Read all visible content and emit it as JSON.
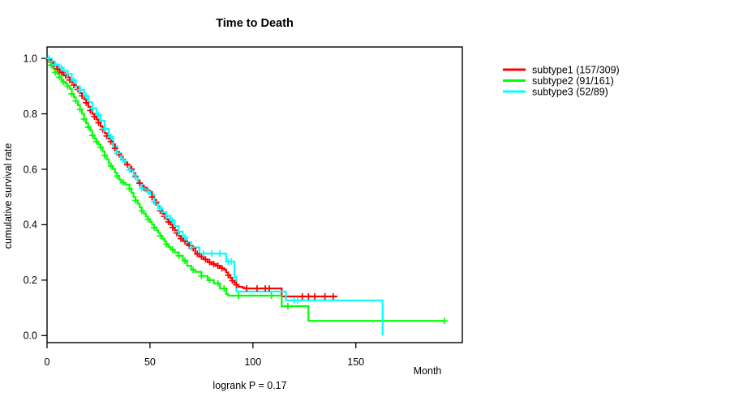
{
  "chart_data": {
    "type": "line",
    "variant": "kaplan-meier-step",
    "title": "Time to Death",
    "xlabel": "Month",
    "ylabel": "cumulative survival rate",
    "footnote": "logrank P = 0.17",
    "xlim": [
      0,
      201
    ],
    "ylim": [
      0,
      1
    ],
    "x_ticks": [
      0,
      50,
      100,
      150
    ],
    "y_ticks": [
      0.0,
      0.2,
      0.4,
      0.6,
      0.8,
      1.0
    ],
    "grid": false,
    "legend_position": "right",
    "series": [
      {
        "name": "subtype1 (157/309)",
        "color": "#ff0000",
        "steps": [
          [
            0,
            1.0
          ],
          [
            1,
            0.995
          ],
          [
            2,
            0.985
          ],
          [
            3,
            0.978
          ],
          [
            4,
            0.97
          ],
          [
            5,
            0.962
          ],
          [
            6,
            0.955
          ],
          [
            7,
            0.949
          ],
          [
            8,
            0.942
          ],
          [
            9,
            0.938
          ],
          [
            10,
            0.932
          ],
          [
            11,
            0.922
          ],
          [
            12,
            0.913
          ],
          [
            13,
            0.904
          ],
          [
            14,
            0.898
          ],
          [
            15,
            0.888
          ],
          [
            16,
            0.875
          ],
          [
            17,
            0.865
          ],
          [
            18,
            0.853
          ],
          [
            19,
            0.84
          ],
          [
            20,
            0.825
          ],
          [
            21,
            0.812
          ],
          [
            22,
            0.8
          ],
          [
            23,
            0.79
          ],
          [
            24,
            0.78
          ],
          [
            25,
            0.768
          ],
          [
            26,
            0.755
          ],
          [
            27,
            0.744
          ],
          [
            28,
            0.731
          ],
          [
            29,
            0.72
          ],
          [
            30,
            0.71
          ],
          [
            31,
            0.7
          ],
          [
            32,
            0.69
          ],
          [
            33,
            0.676
          ],
          [
            34,
            0.662
          ],
          [
            35,
            0.654
          ],
          [
            36,
            0.645
          ],
          [
            37,
            0.635
          ],
          [
            38,
            0.624
          ],
          [
            39,
            0.617
          ],
          [
            40,
            0.61
          ],
          [
            41,
            0.6
          ],
          [
            42,
            0.586
          ],
          [
            43,
            0.574
          ],
          [
            44,
            0.56
          ],
          [
            45,
            0.55
          ],
          [
            46,
            0.54
          ],
          [
            47,
            0.534
          ],
          [
            48,
            0.528
          ],
          [
            49,
            0.523
          ],
          [
            50,
            0.518
          ],
          [
            51,
            0.5
          ],
          [
            52,
            0.49
          ],
          [
            53,
            0.48
          ],
          [
            54,
            0.465
          ],
          [
            55,
            0.45
          ],
          [
            56,
            0.44
          ],
          [
            57,
            0.43
          ],
          [
            58,
            0.42
          ],
          [
            59,
            0.41
          ],
          [
            60,
            0.4
          ],
          [
            61,
            0.39
          ],
          [
            62,
            0.38
          ],
          [
            63,
            0.37
          ],
          [
            64,
            0.36
          ],
          [
            65,
            0.35
          ],
          [
            66,
            0.345
          ],
          [
            67,
            0.34
          ],
          [
            68,
            0.33
          ],
          [
            69,
            0.325
          ],
          [
            70,
            0.32
          ],
          [
            71,
            0.315
          ],
          [
            72,
            0.295
          ],
          [
            74,
            0.285
          ],
          [
            76,
            0.275
          ],
          [
            78,
            0.265
          ],
          [
            80,
            0.258
          ],
          [
            82,
            0.252
          ],
          [
            84,
            0.245
          ],
          [
            85,
            0.243
          ],
          [
            86,
            0.238
          ],
          [
            87,
            0.228
          ],
          [
            88,
            0.218
          ],
          [
            89,
            0.208
          ],
          [
            90,
            0.198
          ],
          [
            91,
            0.19
          ],
          [
            92,
            0.183
          ],
          [
            93,
            0.176
          ],
          [
            95,
            0.172
          ],
          [
            96,
            0.17
          ],
          [
            114,
            0.141
          ],
          [
            141,
            0.141
          ]
        ],
        "censor_times": [
          1,
          3,
          5,
          7,
          9,
          11,
          13,
          15,
          17,
          19,
          21,
          23,
          25,
          27,
          29,
          31,
          33,
          35,
          37,
          39,
          41,
          43,
          45,
          47,
          49,
          51,
          53,
          55,
          57,
          59,
          61,
          63,
          65,
          67,
          69,
          71,
          73,
          75,
          77,
          79,
          81,
          83,
          85,
          88,
          90,
          92,
          97,
          102,
          106,
          108,
          124,
          127,
          130,
          135,
          139
        ]
      },
      {
        "name": "subtype2 (91/161)",
        "color": "#00ff00",
        "steps": [
          [
            0,
            1.0
          ],
          [
            1,
            0.988
          ],
          [
            2,
            0.976
          ],
          [
            3,
            0.962
          ],
          [
            4,
            0.95
          ],
          [
            5,
            0.944
          ],
          [
            6,
            0.932
          ],
          [
            7,
            0.921
          ],
          [
            8,
            0.915
          ],
          [
            9,
            0.909
          ],
          [
            10,
            0.9
          ],
          [
            11,
            0.89
          ],
          [
            12,
            0.872
          ],
          [
            13,
            0.86
          ],
          [
            14,
            0.846
          ],
          [
            15,
            0.831
          ],
          [
            16,
            0.816
          ],
          [
            17,
            0.8
          ],
          [
            18,
            0.781
          ],
          [
            19,
            0.766
          ],
          [
            20,
            0.752
          ],
          [
            21,
            0.74
          ],
          [
            22,
            0.722
          ],
          [
            23,
            0.71
          ],
          [
            24,
            0.7
          ],
          [
            25,
            0.69
          ],
          [
            26,
            0.679
          ],
          [
            27,
            0.665
          ],
          [
            28,
            0.65
          ],
          [
            29,
            0.636
          ],
          [
            30,
            0.621
          ],
          [
            31,
            0.612
          ],
          [
            32,
            0.601
          ],
          [
            33,
            0.588
          ],
          [
            34,
            0.576
          ],
          [
            35,
            0.563
          ],
          [
            36,
            0.552
          ],
          [
            38,
            0.545
          ],
          [
            40,
            0.53
          ],
          [
            41,
            0.515
          ],
          [
            42,
            0.5
          ],
          [
            43,
            0.488
          ],
          [
            44,
            0.476
          ],
          [
            45,
            0.463
          ],
          [
            46,
            0.45
          ],
          [
            47,
            0.44
          ],
          [
            48,
            0.43
          ],
          [
            49,
            0.42
          ],
          [
            50,
            0.41
          ],
          [
            51,
            0.4
          ],
          [
            52,
            0.39
          ],
          [
            53,
            0.38
          ],
          [
            54,
            0.37
          ],
          [
            55,
            0.36
          ],
          [
            56,
            0.35
          ],
          [
            57,
            0.34
          ],
          [
            58,
            0.33
          ],
          [
            59,
            0.32
          ],
          [
            60,
            0.31
          ],
          [
            62,
            0.3
          ],
          [
            64,
            0.288
          ],
          [
            66,
            0.27
          ],
          [
            68,
            0.252
          ],
          [
            70,
            0.237
          ],
          [
            72,
            0.23
          ],
          [
            75,
            0.215
          ],
          [
            78,
            0.2
          ],
          [
            81,
            0.188
          ],
          [
            84,
            0.17
          ],
          [
            87,
            0.15
          ],
          [
            88,
            0.144
          ],
          [
            114,
            0.106
          ],
          [
            127,
            0.053
          ],
          [
            193,
            0.053
          ]
        ],
        "censor_times": [
          2,
          4,
          6,
          8,
          10,
          12,
          14,
          16,
          18,
          20,
          22,
          24,
          26,
          28,
          31,
          34,
          37,
          40,
          43,
          46,
          49,
          52,
          55,
          58,
          61,
          64,
          67,
          71,
          75,
          79,
          83,
          86,
          93,
          109,
          117,
          193
        ]
      },
      {
        "name": "subtype3 (52/89)",
        "color": "#00ffff",
        "steps": [
          [
            0,
            1.0
          ],
          [
            2,
            0.989
          ],
          [
            4,
            0.978
          ],
          [
            6,
            0.966
          ],
          [
            8,
            0.955
          ],
          [
            10,
            0.944
          ],
          [
            12,
            0.921
          ],
          [
            14,
            0.899
          ],
          [
            16,
            0.887
          ],
          [
            18,
            0.865
          ],
          [
            20,
            0.842
          ],
          [
            22,
            0.82
          ],
          [
            24,
            0.797
          ],
          [
            26,
            0.775
          ],
          [
            28,
            0.746
          ],
          [
            30,
            0.718
          ],
          [
            32,
            0.684
          ],
          [
            34,
            0.658
          ],
          [
            36,
            0.634
          ],
          [
            38,
            0.616
          ],
          [
            40,
            0.598
          ],
          [
            42,
            0.572
          ],
          [
            44,
            0.55
          ],
          [
            46,
            0.532
          ],
          [
            48,
            0.52
          ],
          [
            50,
            0.51
          ],
          [
            52,
            0.483
          ],
          [
            54,
            0.46
          ],
          [
            56,
            0.445
          ],
          [
            58,
            0.432
          ],
          [
            60,
            0.415
          ],
          [
            62,
            0.395
          ],
          [
            64,
            0.375
          ],
          [
            66,
            0.355
          ],
          [
            68,
            0.337
          ],
          [
            70,
            0.318
          ],
          [
            74,
            0.296
          ],
          [
            87,
            0.267
          ],
          [
            91,
            0.21
          ],
          [
            92,
            0.159
          ],
          [
            116,
            0.127
          ],
          [
            163,
            0.0
          ]
        ],
        "censor_times": [
          1,
          4,
          7,
          10,
          13,
          16,
          19,
          22,
          25,
          28,
          31,
          34,
          37,
          40,
          43,
          46,
          49,
          52,
          55,
          58,
          61,
          64,
          67,
          70,
          76,
          80,
          84,
          88,
          89.5,
          120,
          121.7
        ]
      }
    ]
  }
}
